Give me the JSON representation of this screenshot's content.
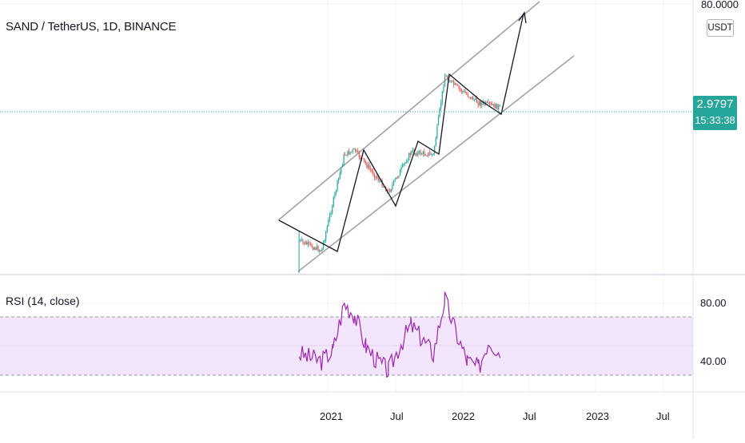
{
  "header": {
    "symbol_title": "SAND / TetherUS, 1D, BINANCE",
    "currency": "USDT"
  },
  "price_axis": {
    "top_label": "80.0000",
    "last_price": "2.9797",
    "countdown": "15:33:38"
  },
  "rsi_pane": {
    "title": "RSI (14, close)",
    "ticks": [
      "80.00",
      "40.00"
    ]
  },
  "time_axis": {
    "labels": [
      "2021",
      "Jul",
      "2022",
      "Jul",
      "2023",
      "Jul"
    ]
  },
  "colors": {
    "up": "#26a69a",
    "down": "#ef5350",
    "rsi_line": "#9c27b0",
    "rsi_band": "#f3e5fb",
    "channel": "#a3a3a3",
    "drawing": "#131722"
  },
  "chart_data": [
    {
      "type": "candlestick",
      "title": "SAND / TetherUS, 1D, BINANCE",
      "y_scale": "log",
      "ylabel": "USDT",
      "last_price": 2.9797,
      "x_ticks": [
        "2021",
        "Jul",
        "2022",
        "Jul",
        "2023",
        "Jul"
      ],
      "close_path_approx": [
        {
          "x": "2020-10",
          "close": 0.06
        },
        {
          "x": "2020-12",
          "close": 0.045
        },
        {
          "x": "2021-02",
          "close": 0.75
        },
        {
          "x": "2021-03",
          "close": 0.85
        },
        {
          "x": "2021-06",
          "close": 0.25
        },
        {
          "x": "2021-08",
          "close": 0.8
        },
        {
          "x": "2021-10",
          "close": 0.75
        },
        {
          "x": "2021-11",
          "close": 7.5
        },
        {
          "x": "2021-12",
          "close": 5.5
        },
        {
          "x": "2022-02",
          "close": 3.4
        },
        {
          "x": "2022-04",
          "close": 2.98
        }
      ],
      "annotations": {
        "ascending_channel": true,
        "projection_arrow_target": 80.0
      }
    },
    {
      "type": "line",
      "title": "RSI (14, close)",
      "y_ticks": [
        80,
        40
      ],
      "band": [
        70,
        30
      ],
      "series": [
        {
          "x": [
            "2020-10",
            "2020-11",
            "2020-12",
            "2021-01",
            "2021-02",
            "2021-03",
            "2021-04",
            "2021-05",
            "2021-06",
            "2021-07",
            "2021-08",
            "2021-09",
            "2021-10",
            "2021-11",
            "2021-12",
            "2022-01",
            "2022-02",
            "2022-03",
            "2022-04"
          ],
          "values": [
            45,
            42,
            40,
            47,
            80,
            72,
            50,
            40,
            33,
            50,
            65,
            55,
            45,
            83,
            60,
            40,
            35,
            55,
            45
          ]
        }
      ]
    }
  ]
}
